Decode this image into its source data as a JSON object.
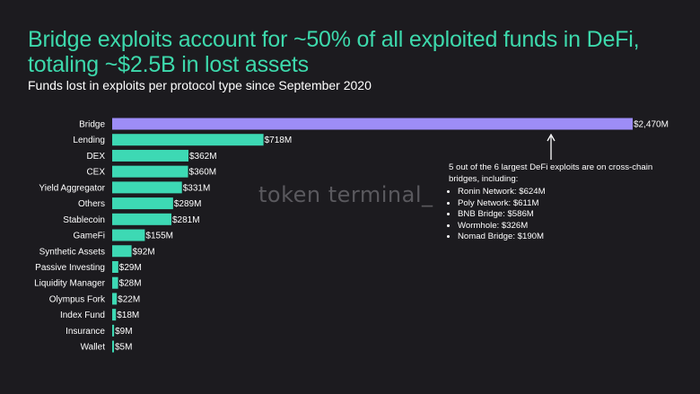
{
  "chart_data": {
    "type": "bar",
    "orientation": "horizontal",
    "title": "Bridge exploits account for ~50% of all exploited funds in DeFi, totaling ~$2.5B in lost assets",
    "subtitle": "Funds lost in exploits per protocol type since September 2020",
    "unit": "$M",
    "categories": [
      "Bridge",
      "Lending",
      "DEX",
      "CEX",
      "Yield Aggregator",
      "Others",
      "Stablecoin",
      "GameFi",
      "Synthetic Assets",
      "Passive Investing",
      "Liquidity Manager",
      "Olympus Fork",
      "Index Fund",
      "Insurance",
      "Wallet"
    ],
    "values": [
      2470,
      718,
      362,
      360,
      331,
      289,
      281,
      155,
      92,
      29,
      28,
      22,
      18,
      9,
      5
    ],
    "data_labels": [
      "$2,470M",
      "$718M",
      "$362M",
      "$360M",
      "$331M",
      "$289M",
      "$281M",
      "$155M",
      "$92M",
      "$29M",
      "$28M",
      "$22M",
      "$18M",
      "$9M",
      "$5M"
    ],
    "xlim": [
      0,
      2470
    ],
    "grid": false,
    "colors": {
      "highlight": "#9d8df7",
      "default": "#3dd9b4",
      "background": "#1c1b1f",
      "title": "#3dd9ac"
    },
    "annotation": {
      "text": "5 out of the 6 largest DeFi exploits are on cross-chain bridges, including:",
      "items": [
        "Ronin Network: $624M",
        "Poly Network: $611M",
        "BNB Bridge: $586M",
        "Wormhole: $326M",
        "Nomad Bridge: $190M"
      ]
    }
  },
  "watermark": "token terminal_"
}
